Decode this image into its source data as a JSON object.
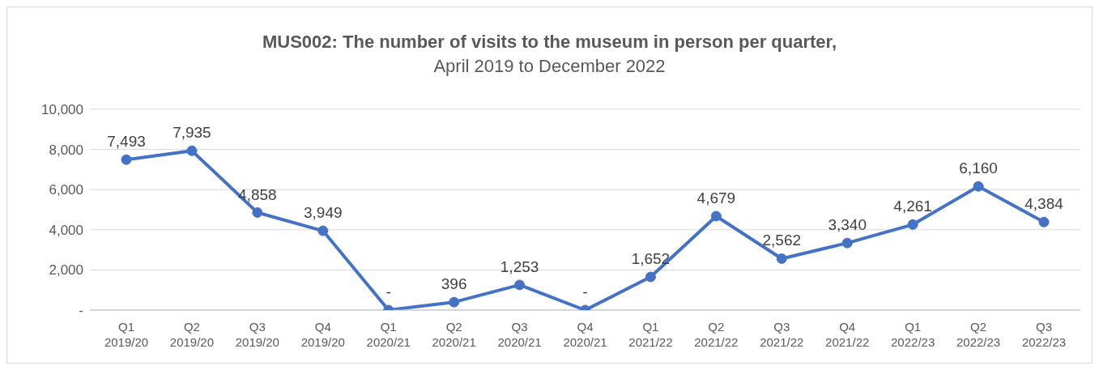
{
  "chart_data": {
    "type": "line",
    "title": "MUS002: The number of visits to the museum in person per quarter,",
    "subtitle": "April 2019 to December 2022",
    "categories": [
      "Q1\n2019/20",
      "Q2\n2019/20",
      "Q3\n2019/20",
      "Q4\n2019/20",
      "Q1\n2020/21",
      "Q2\n2020/21",
      "Q3\n2020/21",
      "Q4\n2020/21",
      "Q1\n2021/22",
      "Q2\n2021/22",
      "Q3\n2021/22",
      "Q4\n2021/22",
      "Q1\n2022/23",
      "Q2\n2022/23",
      "Q3\n2022/23"
    ],
    "values": [
      7493,
      7935,
      4858,
      3949,
      0,
      396,
      1253,
      0,
      1652,
      4679,
      2562,
      3340,
      4261,
      6160,
      4384
    ],
    "value_labels": [
      "7,493",
      "7,935",
      "4,858",
      "3,949",
      "-",
      "396",
      "1,253",
      "-",
      "1,652",
      "4,679",
      "2,562",
      "3,340",
      "4,261",
      "6,160",
      "4,384"
    ],
    "color": "#4472c4",
    "marker": "circle",
    "line_style": "solid",
    "ylim": [
      0,
      10000
    ],
    "yticks": [
      {
        "value": 0,
        "label": "-"
      },
      {
        "value": 2000,
        "label": "2,000"
      },
      {
        "value": 4000,
        "label": "4,000"
      },
      {
        "value": 6000,
        "label": "6,000"
      },
      {
        "value": 8000,
        "label": "8,000"
      },
      {
        "value": 10000,
        "label": "10,000"
      }
    ],
    "grid": "y",
    "legend": false
  }
}
